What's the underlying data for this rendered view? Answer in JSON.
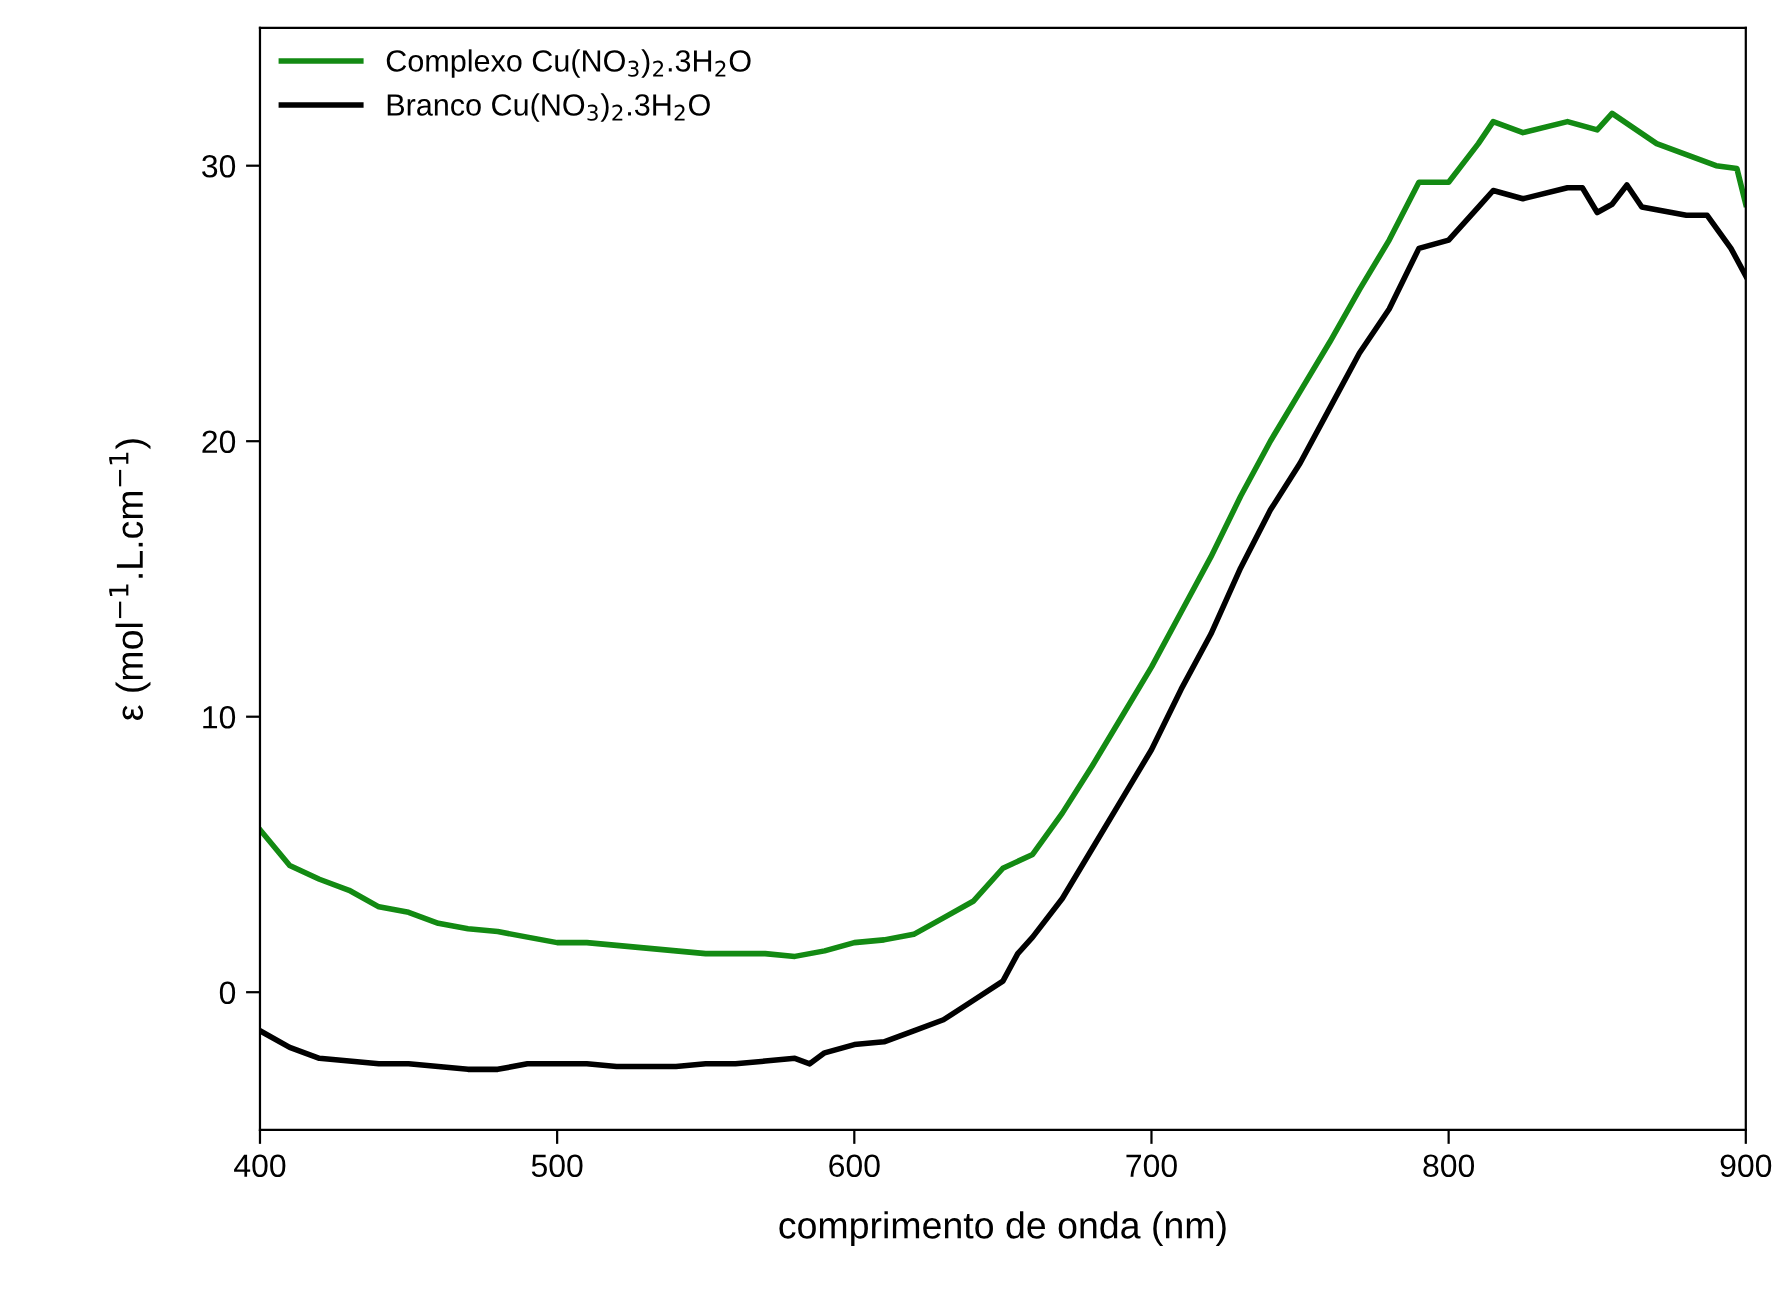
{
  "chart_data": {
    "type": "line",
    "xlabel": "comprimento de onda (nm)",
    "ylabel": "ε (mol$^{−1}$.L.cm$^{−1}$)",
    "xlim": [
      400,
      900
    ],
    "xticks": [
      400,
      500,
      600,
      700,
      800,
      900
    ],
    "ylim": [
      -5,
      35
    ],
    "yticks": [
      0,
      10,
      20,
      30
    ],
    "grid": false,
    "legend": "top left",
    "line_style": "solid",
    "marker": "none",
    "series": [
      {
        "name": "Complexo Cu(NO$_{3}$)$_{2}$.3H$_{2}$O",
        "color": "#138a13",
        "x": [
          400,
          410,
          420,
          430,
          440,
          450,
          460,
          470,
          480,
          490,
          500,
          510,
          520,
          530,
          540,
          550,
          560,
          570,
          580,
          590,
          600,
          610,
          620,
          630,
          640,
          650,
          660,
          670,
          680,
          690,
          700,
          710,
          720,
          730,
          740,
          750,
          760,
          770,
          780,
          790,
          800,
          810,
          815,
          825,
          840,
          850,
          855,
          870,
          880,
          890,
          897,
          900
        ],
        "values": [
          5.9,
          4.6,
          4.1,
          3.7,
          3.1,
          2.9,
          2.5,
          2.3,
          2.2,
          2.0,
          1.8,
          1.8,
          1.7,
          1.6,
          1.5,
          1.4,
          1.4,
          1.4,
          1.3,
          1.5,
          1.8,
          1.9,
          2.1,
          2.7,
          3.3,
          4.5,
          5.0,
          6.5,
          8.2,
          10.0,
          11.8,
          13.8,
          15.8,
          18.0,
          20.0,
          21.8,
          23.6,
          25.5,
          27.3,
          29.4,
          29.4,
          30.8,
          31.6,
          31.2,
          31.6,
          31.3,
          31.9,
          30.8,
          30.4,
          30.0,
          29.9,
          28.6
        ]
      },
      {
        "name": "Branco Cu(NO$_{3}$)$_{2}$.3H$_{2}$O",
        "color": "#000000",
        "x": [
          400,
          410,
          420,
          430,
          440,
          450,
          460,
          470,
          480,
          490,
          500,
          510,
          520,
          530,
          540,
          550,
          560,
          570,
          580,
          585,
          590,
          600,
          610,
          620,
          630,
          640,
          650,
          655,
          660,
          670,
          680,
          690,
          700,
          710,
          720,
          730,
          740,
          750,
          760,
          770,
          780,
          790,
          800,
          810,
          815,
          825,
          840,
          845,
          850,
          855,
          860,
          865,
          880,
          887,
          895,
          900
        ],
        "values": [
          -1.4,
          -2.0,
          -2.4,
          -2.5,
          -2.6,
          -2.6,
          -2.7,
          -2.8,
          -2.8,
          -2.6,
          -2.6,
          -2.6,
          -2.7,
          -2.7,
          -2.7,
          -2.6,
          -2.6,
          -2.5,
          -2.4,
          -2.6,
          -2.2,
          -1.9,
          -1.8,
          -1.4,
          -1.0,
          -0.3,
          0.4,
          1.4,
          2.0,
          3.4,
          5.2,
          7.0,
          8.8,
          11.0,
          13.0,
          15.4,
          17.5,
          19.2,
          21.2,
          23.2,
          24.8,
          27.0,
          27.3,
          28.5,
          29.1,
          28.8,
          29.2,
          29.2,
          28.3,
          28.6,
          29.3,
          28.5,
          28.2,
          28.2,
          27.0,
          26.0
        ]
      }
    ]
  }
}
